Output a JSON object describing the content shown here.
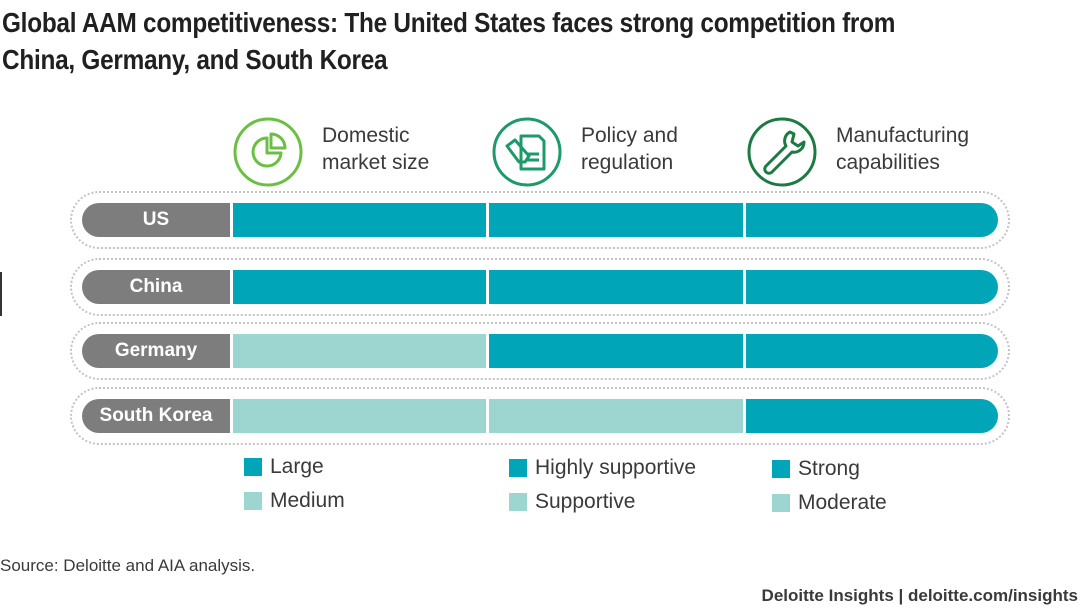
{
  "title": "Global AAM competitiveness: The United States faces strong competition from China, Germany, and South Korea",
  "colors": {
    "high": "#00a6b8",
    "low": "#9dd6d1",
    "row_label_bg": "#7d7d7d",
    "icon_green": "#6cbf45",
    "icon_darkgreen": "#1e7a43"
  },
  "columns": [
    {
      "label": "Domestic\nmarket size",
      "icon": "pie-chart-icon"
    },
    {
      "label": "Policy and\nregulation",
      "icon": "document-pen-icon"
    },
    {
      "label": "Manufacturing\ncapabilities",
      "icon": "wrench-icon"
    }
  ],
  "chart_data": {
    "type": "table",
    "categories": [
      "US",
      "China",
      "Germany",
      "South Korea"
    ],
    "columns": [
      "Domestic market size",
      "Policy and regulation",
      "Manufacturing capabilities"
    ],
    "rows": [
      {
        "country": "US",
        "values": [
          "Large",
          "Highly supportive",
          "Strong"
        ]
      },
      {
        "country": "China",
        "values": [
          "Large",
          "Highly supportive",
          "Strong"
        ]
      },
      {
        "country": "Germany",
        "values": [
          "Medium",
          "Highly supportive",
          "Strong"
        ]
      },
      {
        "country": "South Korea",
        "values": [
          "Medium",
          "Supportive",
          "Strong"
        ]
      }
    ],
    "levels": [
      {
        "high": "Large",
        "low": "Medium"
      },
      {
        "high": "Highly supportive",
        "low": "Supportive"
      },
      {
        "high": "Strong",
        "low": "Moderate"
      }
    ]
  },
  "legend": [
    {
      "high": "Large",
      "low": "Medium"
    },
    {
      "high": "Highly supportive",
      "low": "Supportive"
    },
    {
      "high": "Strong",
      "low": "Moderate"
    }
  ],
  "source": "Source: Deloitte and AIA analysis.",
  "credit": "Deloitte Insights | deloitte.com/insights"
}
